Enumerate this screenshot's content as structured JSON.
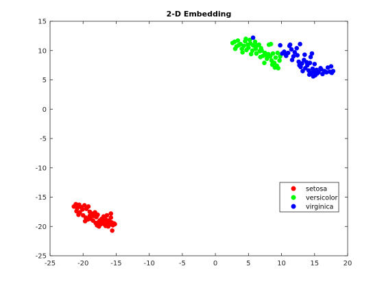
{
  "chart_data": {
    "type": "scatter",
    "title": "2-D Embedding",
    "xlabel": "",
    "ylabel": "",
    "xlim": [
      -25,
      20
    ],
    "ylim": [
      -25,
      15
    ],
    "xticks": [
      -25,
      -20,
      -15,
      -10,
      -5,
      0,
      5,
      10,
      15,
      20
    ],
    "yticks": [
      -25,
      -20,
      -15,
      -10,
      -5,
      0,
      5,
      10,
      15
    ],
    "grid": false,
    "legend_position": "lower-right",
    "series": [
      {
        "name": "setosa",
        "color": "#ff0000",
        "points": [
          [
            -21.4,
            -16.6
          ],
          [
            -21.1,
            -16.2
          ],
          [
            -20.9,
            -16.9
          ],
          [
            -20.6,
            -16.3
          ],
          [
            -20.3,
            -16.7
          ],
          [
            -21.0,
            -17.4
          ],
          [
            -20.5,
            -17.6
          ],
          [
            -20.1,
            -17.1
          ],
          [
            -19.8,
            -16.4
          ],
          [
            -19.5,
            -17.0
          ],
          [
            -19.2,
            -16.6
          ],
          [
            -19.0,
            -17.5
          ],
          [
            -20.7,
            -18.0
          ],
          [
            -20.0,
            -18.1
          ],
          [
            -19.6,
            -18.5
          ],
          [
            -19.3,
            -18.8
          ],
          [
            -19.7,
            -19.1
          ],
          [
            -19.0,
            -18.2
          ],
          [
            -18.7,
            -17.8
          ],
          [
            -18.4,
            -18.2
          ],
          [
            -18.2,
            -17.6
          ],
          [
            -18.0,
            -18.4
          ],
          [
            -17.8,
            -18.0
          ],
          [
            -18.5,
            -19.0
          ],
          [
            -18.1,
            -19.4
          ],
          [
            -17.7,
            -19.3
          ],
          [
            -17.5,
            -19.0
          ],
          [
            -17.3,
            -19.6
          ],
          [
            -17.6,
            -20.0
          ],
          [
            -17.2,
            -18.7
          ],
          [
            -17.0,
            -19.2
          ],
          [
            -16.8,
            -19.6
          ],
          [
            -16.6,
            -19.9
          ],
          [
            -16.5,
            -18.9
          ],
          [
            -16.3,
            -19.4
          ],
          [
            -16.1,
            -19.0
          ],
          [
            -16.0,
            -19.7
          ],
          [
            -15.8,
            -18.5
          ],
          [
            -15.7,
            -19.3
          ],
          [
            -15.5,
            -19.8
          ],
          [
            -15.3,
            -19.5
          ],
          [
            -15.8,
            -17.8
          ],
          [
            -16.4,
            -18.1
          ],
          [
            -15.6,
            -20.7
          ],
          [
            -16.9,
            -18.3
          ],
          [
            -18.9,
            -18.7
          ],
          [
            -17.9,
            -19.8
          ],
          [
            -16.2,
            -20.0
          ],
          [
            -15.2,
            -19.6
          ],
          [
            -16.7,
            -18.6
          ]
        ]
      },
      {
        "name": "versicolor",
        "color": "#00ff00",
        "points": [
          [
            2.6,
            11.3
          ],
          [
            2.9,
            11.5
          ],
          [
            3.2,
            10.7
          ],
          [
            3.5,
            10.9
          ],
          [
            3.8,
            11.1
          ],
          [
            4.0,
            10.3
          ],
          [
            4.3,
            10.8
          ],
          [
            4.5,
            11.6
          ],
          [
            4.1,
            9.7
          ],
          [
            4.7,
            10.1
          ],
          [
            5.0,
            10.5
          ],
          [
            5.3,
            11.2
          ],
          [
            5.6,
            10.0
          ],
          [
            5.4,
            9.4
          ],
          [
            5.9,
            10.8
          ],
          [
            6.1,
            10.3
          ],
          [
            6.4,
            10.9
          ],
          [
            6.7,
            9.9
          ],
          [
            6.2,
            9.5
          ],
          [
            6.9,
            10.4
          ],
          [
            7.2,
            9.1
          ],
          [
            7.5,
            9.6
          ],
          [
            7.8,
            8.6
          ],
          [
            8.0,
            9.4
          ],
          [
            8.3,
            9.0
          ],
          [
            8.5,
            8.3
          ],
          [
            8.7,
            9.5
          ],
          [
            8.9,
            7.9
          ],
          [
            9.1,
            8.8
          ],
          [
            9.3,
            7.4
          ],
          [
            9.5,
            7.0
          ],
          [
            9.7,
            8.3
          ],
          [
            9.0,
            7.1
          ],
          [
            8.6,
            7.6
          ],
          [
            8.1,
            11.0
          ],
          [
            8.4,
            11.1
          ],
          [
            6.6,
            11.0
          ],
          [
            6.0,
            11.5
          ],
          [
            5.2,
            11.8
          ],
          [
            4.6,
            12.0
          ],
          [
            3.4,
            11.7
          ],
          [
            7.0,
            10.0
          ],
          [
            7.7,
            9.2
          ],
          [
            5.7,
            10.9
          ],
          [
            4.9,
            11.0
          ],
          [
            6.8,
            8.9
          ],
          [
            7.4,
            7.9
          ],
          [
            9.8,
            9.0
          ],
          [
            9.4,
            9.6
          ],
          [
            3.0,
            10.3
          ]
        ]
      },
      {
        "name": "virginica",
        "color": "#0000ff",
        "points": [
          [
            5.7,
            12.2
          ],
          [
            9.8,
            10.9
          ],
          [
            10.1,
            9.5
          ],
          [
            10.4,
            9.8
          ],
          [
            10.7,
            9.1
          ],
          [
            11.0,
            9.6
          ],
          [
            11.2,
            10.8
          ],
          [
            11.5,
            10.2
          ],
          [
            11.8,
            9.0
          ],
          [
            12.0,
            9.7
          ],
          [
            12.3,
            10.4
          ],
          [
            11.6,
            8.4
          ],
          [
            12.8,
            11.1
          ],
          [
            12.6,
            8.1
          ],
          [
            12.9,
            7.2
          ],
          [
            13.1,
            7.8
          ],
          [
            13.4,
            8.4
          ],
          [
            13.6,
            7.0
          ],
          [
            13.9,
            7.5
          ],
          [
            14.1,
            6.6
          ],
          [
            14.3,
            7.9
          ],
          [
            14.5,
            6.2
          ],
          [
            14.7,
            6.9
          ],
          [
            14.9,
            6.4
          ],
          [
            15.1,
            5.8
          ],
          [
            15.3,
            6.7
          ],
          [
            15.0,
            7.7
          ],
          [
            14.4,
            8.9
          ],
          [
            14.6,
            9.5
          ],
          [
            15.6,
            6.3
          ],
          [
            15.9,
            7.0
          ],
          [
            16.2,
            6.0
          ],
          [
            16.5,
            6.5
          ],
          [
            16.8,
            6.3
          ],
          [
            17.0,
            7.1
          ],
          [
            17.3,
            6.4
          ],
          [
            17.6,
            6.2
          ],
          [
            17.8,
            6.5
          ],
          [
            17.5,
            7.3
          ],
          [
            13.5,
            9.3
          ],
          [
            14.8,
            5.6
          ],
          [
            13.2,
            6.5
          ],
          [
            14.2,
            5.9
          ],
          [
            12.4,
            9.2
          ],
          [
            11.3,
            11.0
          ],
          [
            10.6,
            9.4
          ],
          [
            13.8,
            8.0
          ],
          [
            16.0,
            6.8
          ],
          [
            15.4,
            6.1
          ],
          [
            12.7,
            7.5
          ]
        ]
      }
    ]
  }
}
